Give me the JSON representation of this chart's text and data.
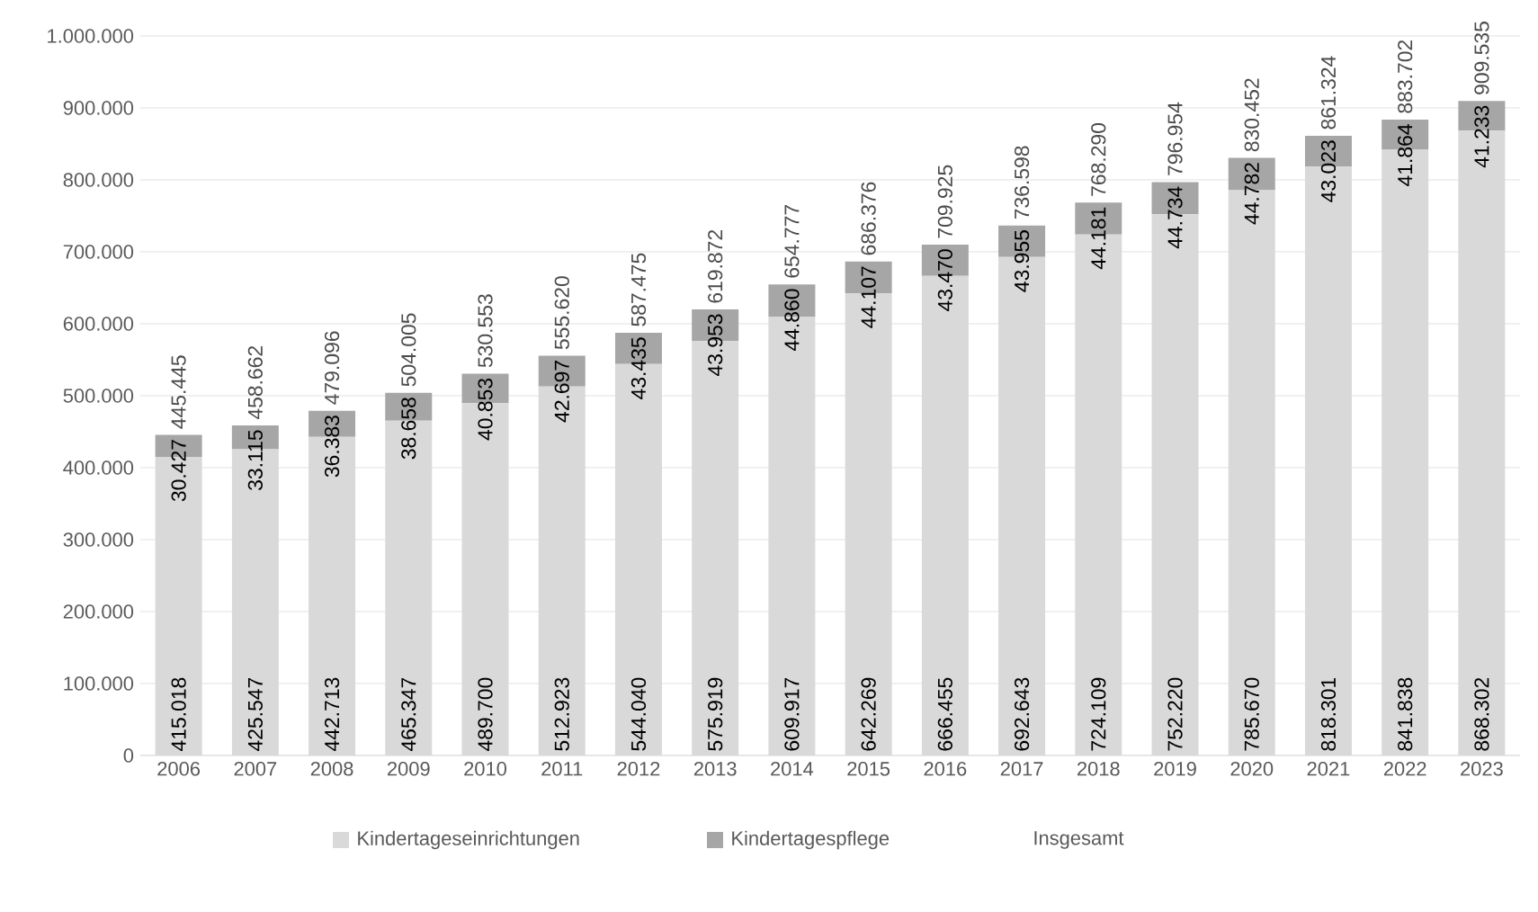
{
  "chart_data": {
    "type": "bar",
    "stacked": true,
    "categories": [
      "2006",
      "2007",
      "2008",
      "2009",
      "2010",
      "2011",
      "2012",
      "2013",
      "2014",
      "2015",
      "2016",
      "2017",
      "2018",
      "2019",
      "2020",
      "2021",
      "2022",
      "2023"
    ],
    "series": [
      {
        "name": "Kindertageseinrichtungen",
        "color": "#d9d9d9",
        "values": [
          415018,
          425547,
          442713,
          465347,
          489700,
          512923,
          544040,
          575919,
          609917,
          642269,
          666455,
          692643,
          724109,
          752220,
          785670,
          818301,
          841838,
          868302
        ],
        "value_labels": [
          "415.018",
          "425.547",
          "442.713",
          "465.347",
          "489.700",
          "512.923",
          "544.040",
          "575.919",
          "609.917",
          "642.269",
          "666.455",
          "692.643",
          "724.109",
          "752.220",
          "785.670",
          "818.301",
          "841.838",
          "868.302"
        ]
      },
      {
        "name": "Kindertagespflege",
        "color": "#a6a6a6",
        "values": [
          30427,
          33115,
          36383,
          38658,
          40853,
          42697,
          43435,
          43953,
          44860,
          44107,
          43470,
          43955,
          44181,
          44734,
          44782,
          43023,
          41864,
          41233
        ],
        "value_labels": [
          "30.427",
          "33.115",
          "36.383",
          "38.658",
          "40.853",
          "42.697",
          "43.435",
          "43.953",
          "44.860",
          "44.107",
          "43.470",
          "43.955",
          "44.181",
          "44.734",
          "44.782",
          "43.023",
          "41.864",
          "41.233"
        ]
      }
    ],
    "totals": [
      "445.445",
      "458.662",
      "479.096",
      "504.005",
      "530.553",
      "555.620",
      "587.475",
      "619.872",
      "654.777",
      "686.376",
      "709.925",
      "736.598",
      "768.290",
      "796.954",
      "830.452",
      "861.324",
      "883.702",
      "909.535"
    ],
    "annotations": [
      "Insgesamt"
    ],
    "ylim": [
      0,
      1000000
    ],
    "yticks": [
      {
        "value": 0,
        "label": "0"
      },
      {
        "value": 100000,
        "label": "100.000"
      },
      {
        "value": 200000,
        "label": "200.000"
      },
      {
        "value": 300000,
        "label": "300.000"
      },
      {
        "value": 400000,
        "label": "400.000"
      },
      {
        "value": 500000,
        "label": "500.000"
      },
      {
        "value": 600000,
        "label": "600.000"
      },
      {
        "value": 700000,
        "label": "700.000"
      },
      {
        "value": 800000,
        "label": "800.000"
      },
      {
        "value": 900000,
        "label": "900.000"
      },
      {
        "value": 1000000,
        "label": "1.000.000"
      }
    ],
    "grid": "y",
    "legend": "bottom"
  }
}
